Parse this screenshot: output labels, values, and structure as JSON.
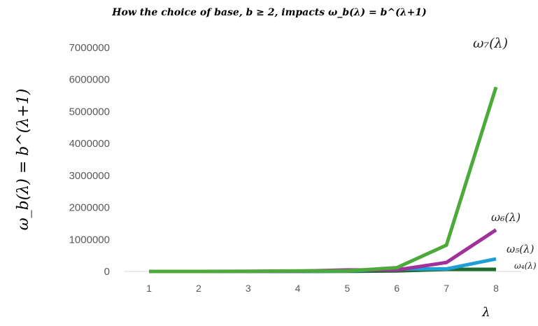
{
  "chart_data": {
    "type": "line",
    "title": "How the choice of base, b ≥ 2, impacts ω_b(λ) =  b^(λ+1)",
    "xlabel": "λ",
    "ylabel": "ω_b(λ)  =  b^(λ+1)",
    "x": [
      1,
      2,
      3,
      4,
      5,
      6,
      7,
      8
    ],
    "xticks": [
      "1",
      "2",
      "3",
      "4",
      "5",
      "6",
      "7",
      "8"
    ],
    "ylim": [
      0,
      7000000
    ],
    "yticks": [
      "0",
      "1000000",
      "2000000",
      "3000000",
      "4000000",
      "5000000",
      "6000000",
      "7000000"
    ],
    "grid": false,
    "legend": "none",
    "series": [
      {
        "name": "ω₄(λ)",
        "color": "#1e6b2e",
        "values": [
          16,
          64,
          256,
          1024,
          4096,
          16384,
          65536,
          65536
        ]
      },
      {
        "name": "ω₅(λ)",
        "color": "#1f9fd6",
        "values": [
          25,
          125,
          625,
          3125,
          15625,
          78125,
          78125,
          390625
        ]
      },
      {
        "name": "ω₆(λ)",
        "color": "#a0309a",
        "values": [
          36,
          216,
          1296,
          7776,
          46656,
          46656,
          279936,
          1300000
        ]
      },
      {
        "name": "ω₇(λ)",
        "color": "#4caa3a",
        "values": [
          49,
          343,
          2401,
          16807,
          16807,
          117649,
          823543,
          5764801
        ]
      }
    ]
  }
}
